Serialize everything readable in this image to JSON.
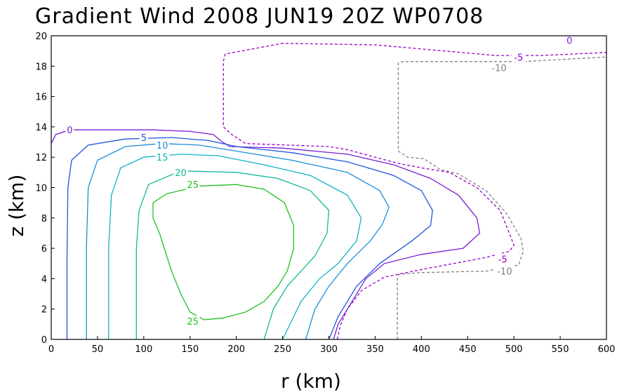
{
  "chart_data": {
    "type": "contour",
    "title": "Gradient Wind 2008 JUN19 20Z   WP0708",
    "xlabel": "r (km)",
    "ylabel": "z (km)",
    "xlim": [
      0,
      600
    ],
    "ylim": [
      0,
      20
    ],
    "xticks": [
      "0",
      "50",
      "100",
      "150",
      "200",
      "250",
      "300",
      "350",
      "400",
      "450",
      "500",
      "550",
      "600"
    ],
    "yticks": [
      "0",
      "2",
      "4",
      "6",
      "8",
      "10",
      "12",
      "14",
      "16",
      "18",
      "20"
    ],
    "grid": false,
    "contours": [
      {
        "level": -10,
        "label": "-10",
        "color": "#808080",
        "dashed": true,
        "points": [
          [
            374,
            0
          ],
          [
            374,
            4
          ],
          [
            376,
            4.3
          ],
          [
            400,
            4.4
          ],
          [
            470,
            4.5
          ],
          [
            505,
            4.9
          ],
          [
            510,
            5.8
          ],
          [
            508,
            6.6
          ],
          [
            492,
            8.3
          ],
          [
            470,
            9.8
          ],
          [
            440,
            10.9
          ],
          [
            420,
            11.2
          ],
          [
            403,
            11.9
          ],
          [
            385,
            12.0
          ],
          [
            375,
            12.4
          ],
          [
            375,
            18.2
          ],
          [
            380,
            18.3
          ],
          [
            510,
            18.3
          ],
          [
            600,
            18.6
          ]
        ],
        "labels": [
          {
            "x": 490,
            "y": 4.5
          },
          {
            "x": 484,
            "y": 17.9
          }
        ]
      },
      {
        "level": -5,
        "label": "-5",
        "color": "#9900cc",
        "dashed": true,
        "points": [
          [
            309,
            0
          ],
          [
            313,
            1
          ],
          [
            320,
            2
          ],
          [
            335,
            3.2
          ],
          [
            360,
            4.1
          ],
          [
            400,
            4.6
          ],
          [
            470,
            5.4
          ],
          [
            495,
            5.8
          ],
          [
            500,
            6.2
          ],
          [
            495,
            7.0
          ],
          [
            485,
            8.5
          ],
          [
            460,
            10.0
          ],
          [
            430,
            11.0
          ],
          [
            400,
            11.3
          ],
          [
            375,
            11.6
          ],
          [
            350,
            12.0
          ],
          [
            320,
            12.5
          ],
          [
            300,
            12.7
          ],
          [
            210,
            12.9
          ],
          [
            195,
            13.5
          ],
          [
            186,
            14.0
          ],
          [
            186,
            18.3
          ],
          [
            188,
            18.8
          ],
          [
            250,
            19.5
          ],
          [
            350,
            19.4
          ],
          [
            480,
            18.7
          ],
          [
            530,
            18.7
          ],
          [
            600,
            18.9
          ]
        ],
        "labels": [
          {
            "x": 488,
            "y": 5.3
          },
          {
            "x": 505,
            "y": 18.6
          }
        ]
      },
      {
        "level": 0,
        "label": "0",
        "color": "#7a1fd0",
        "dashed": false,
        "points": [
          [
            0,
            12.9
          ],
          [
            5,
            13.5
          ],
          [
            20,
            13.8
          ],
          [
            60,
            13.8
          ],
          [
            110,
            13.8
          ],
          [
            150,
            13.7
          ],
          [
            175,
            13.5
          ],
          [
            185,
            13.0
          ],
          [
            193,
            12.7
          ],
          [
            250,
            12.6
          ],
          [
            320,
            12.2
          ],
          [
            370,
            11.5
          ],
          [
            410,
            10.6
          ],
          [
            440,
            9.5
          ],
          [
            460,
            8.0
          ],
          [
            463,
            7.0
          ],
          [
            445,
            6.0
          ],
          [
            400,
            5.6
          ],
          [
            360,
            5.0
          ],
          [
            340,
            4.0
          ],
          [
            325,
            2.5
          ],
          [
            310,
            1.0
          ],
          [
            305,
            0
          ]
        ],
        "labels": [
          {
            "x": 20,
            "y": 13.8
          },
          {
            "x": 560,
            "y": 19.7
          }
        ]
      },
      {
        "level": 5,
        "label": "5",
        "color": "#2255dd",
        "dashed": false,
        "points": [
          [
            17,
            0
          ],
          [
            17,
            5
          ],
          [
            18,
            10
          ],
          [
            22,
            11.8
          ],
          [
            40,
            12.8
          ],
          [
            80,
            13.2
          ],
          [
            130,
            13.3
          ],
          [
            170,
            13.1
          ],
          [
            200,
            12.7
          ],
          [
            260,
            12.3
          ],
          [
            320,
            11.7
          ],
          [
            370,
            10.8
          ],
          [
            400,
            9.8
          ],
          [
            412,
            8.5
          ],
          [
            410,
            7.5
          ],
          [
            390,
            6.5
          ],
          [
            355,
            5.0
          ],
          [
            330,
            3.5
          ],
          [
            310,
            1.5
          ],
          [
            300,
            0
          ]
        ],
        "labels": [
          {
            "x": 100,
            "y": 13.3
          }
        ]
      },
      {
        "level": 10,
        "label": "10",
        "color": "#1b8fd8",
        "dashed": false,
        "points": [
          [
            38,
            0
          ],
          [
            38,
            6
          ],
          [
            40,
            10
          ],
          [
            50,
            11.8
          ],
          [
            80,
            12.7
          ],
          [
            120,
            12.9
          ],
          [
            160,
            12.8
          ],
          [
            200,
            12.4
          ],
          [
            260,
            11.8
          ],
          [
            320,
            11.0
          ],
          [
            355,
            9.8
          ],
          [
            365,
            8.7
          ],
          [
            358,
            7.6
          ],
          [
            345,
            6.5
          ],
          [
            320,
            5.0
          ],
          [
            300,
            3.5
          ],
          [
            285,
            2.0
          ],
          [
            275,
            0
          ]
        ],
        "labels": [
          {
            "x": 120,
            "y": 12.8
          }
        ]
      },
      {
        "level": 15,
        "label": "15",
        "color": "#11b3c0",
        "dashed": false,
        "points": [
          [
            62,
            0
          ],
          [
            62,
            6
          ],
          [
            65,
            9.5
          ],
          [
            75,
            11.3
          ],
          [
            100,
            12.0
          ],
          [
            140,
            12.2
          ],
          [
            180,
            12.1
          ],
          [
            230,
            11.5
          ],
          [
            280,
            10.8
          ],
          [
            320,
            9.5
          ],
          [
            335,
            8.0
          ],
          [
            330,
            6.5
          ],
          [
            310,
            5.0
          ],
          [
            290,
            4.0
          ],
          [
            270,
            2.5
          ],
          [
            250,
            0
          ]
        ],
        "labels": [
          {
            "x": 120,
            "y": 12.0
          }
        ]
      },
      {
        "level": 20,
        "label": "20",
        "color": "#11b89b",
        "dashed": false,
        "points": [
          [
            92,
            0
          ],
          [
            92,
            6
          ],
          [
            95,
            8.5
          ],
          [
            105,
            10.2
          ],
          [
            140,
            11.1
          ],
          [
            200,
            11.0
          ],
          [
            245,
            10.6
          ],
          [
            280,
            9.8
          ],
          [
            300,
            8.5
          ],
          [
            298,
            7.0
          ],
          [
            285,
            5.5
          ],
          [
            270,
            4.5
          ],
          [
            255,
            3.5
          ],
          [
            240,
            2.0
          ],
          [
            230,
            0
          ]
        ],
        "labels": [
          {
            "x": 140,
            "y": 11.0
          }
        ]
      },
      {
        "level": 25,
        "label": "25",
        "color": "#22c022",
        "dashed": false,
        "points": [
          [
            160,
            10.1
          ],
          [
            200,
            10.2
          ],
          [
            230,
            9.9
          ],
          [
            252,
            9.0
          ],
          [
            262,
            7.5
          ],
          [
            262,
            6.0
          ],
          [
            255,
            4.5
          ],
          [
            245,
            3.5
          ],
          [
            230,
            2.5
          ],
          [
            210,
            1.8
          ],
          [
            185,
            1.4
          ],
          [
            165,
            1.3
          ],
          [
            150,
            1.8
          ],
          [
            140,
            3.0
          ],
          [
            130,
            4.5
          ],
          [
            117,
            7.0
          ],
          [
            110,
            8.0
          ],
          [
            110,
            9.0
          ],
          [
            125,
            9.6
          ],
          [
            160,
            10.1
          ]
        ],
        "labels": [
          {
            "x": 153,
            "y": 10.2
          },
          {
            "x": 153,
            "y": 1.2
          }
        ]
      }
    ]
  }
}
